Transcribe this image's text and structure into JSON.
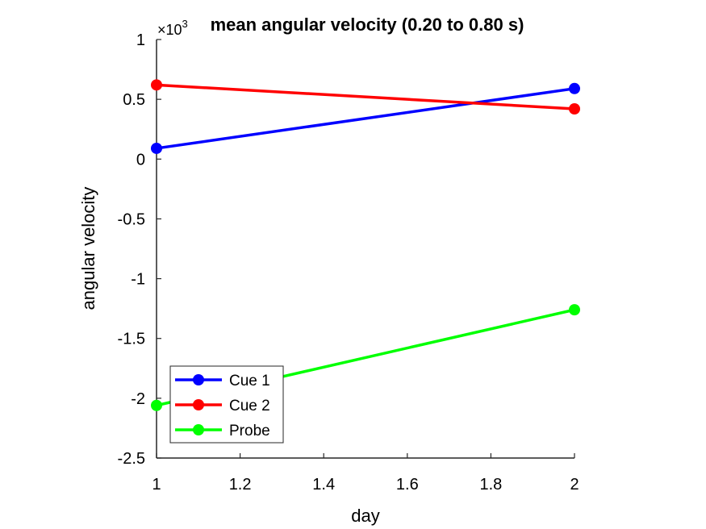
{
  "chart_data": {
    "type": "line",
    "title": "mean angular velocity (0.20 to 0.80 s)",
    "xlabel": "day",
    "ylabel": "angular velocity",
    "y_multiplier_label": "×10",
    "y_multiplier_exponent": "3",
    "xlim": [
      1,
      2
    ],
    "ylim": [
      -2.5,
      1
    ],
    "xticks": [
      "1",
      "1.2",
      "1.4",
      "1.6",
      "1.8",
      "2"
    ],
    "xtick_values": [
      1,
      1.2,
      1.4,
      1.6,
      1.8,
      2
    ],
    "yticks": [
      "1",
      "0.5",
      "0",
      "-0.5",
      "-1",
      "-1.5",
      "-2",
      "-2.5"
    ],
    "ytick_values": [
      1,
      0.5,
      0,
      -0.5,
      -1,
      -1.5,
      -2,
      -2.5
    ],
    "x": [
      1,
      2
    ],
    "series": [
      {
        "name": "Cue 1",
        "color": "#0000ff",
        "values": [
          0.09,
          0.59
        ]
      },
      {
        "name": "Cue 2",
        "color": "#ff0000",
        "values": [
          0.62,
          0.42
        ]
      },
      {
        "name": "Probe",
        "color": "#00ff00",
        "values": [
          -2.06,
          -1.26
        ]
      }
    ],
    "legend_position": "bottom-left",
    "grid": false
  }
}
